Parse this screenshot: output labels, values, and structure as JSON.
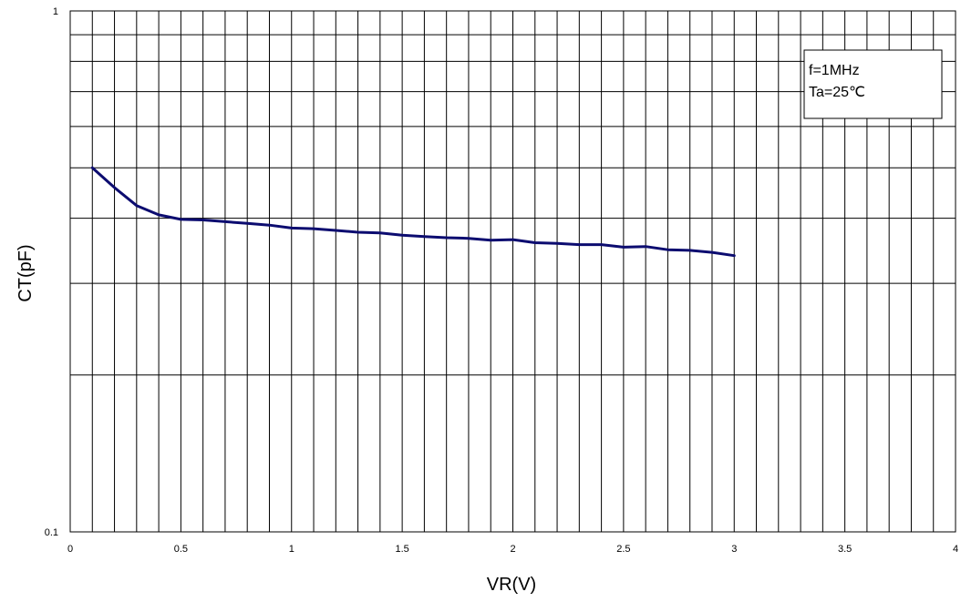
{
  "chart_data": {
    "type": "line",
    "title": "",
    "xlabel": "VR(V)",
    "ylabel": "CT(pF)",
    "xlim": [
      0,
      4
    ],
    "ylim": [
      0.1,
      1
    ],
    "yscale": "log",
    "grid": true,
    "x_ticks": [
      "0",
      "0.5",
      "1",
      "1.5",
      "2",
      "2.5",
      "3",
      "3.5",
      "4"
    ],
    "y_ticks": [
      "0.1",
      "1"
    ],
    "annotation": [
      "f=1MHz",
      "Ta=25℃"
    ],
    "legend_position": "top-right",
    "series_color": "#0c0c70",
    "series": [
      {
        "x": [
          0.1,
          0.2,
          0.3,
          0.4,
          0.5,
          0.6,
          0.7,
          0.8,
          0.9,
          1.0,
          1.1,
          1.2,
          1.3,
          1.4,
          1.5,
          1.6,
          1.7,
          1.8,
          1.9,
          2.0,
          2.1,
          2.2,
          2.3,
          2.4,
          2.5,
          2.6,
          2.7,
          2.8,
          2.9,
          3.0
        ],
        "y": [
          0.5,
          0.458,
          0.423,
          0.406,
          0.398,
          0.397,
          0.394,
          0.391,
          0.388,
          0.383,
          0.382,
          0.379,
          0.376,
          0.375,
          0.371,
          0.369,
          0.367,
          0.366,
          0.363,
          0.364,
          0.359,
          0.358,
          0.356,
          0.356,
          0.352,
          0.353,
          0.348,
          0.347,
          0.344,
          0.339
        ]
      }
    ]
  }
}
